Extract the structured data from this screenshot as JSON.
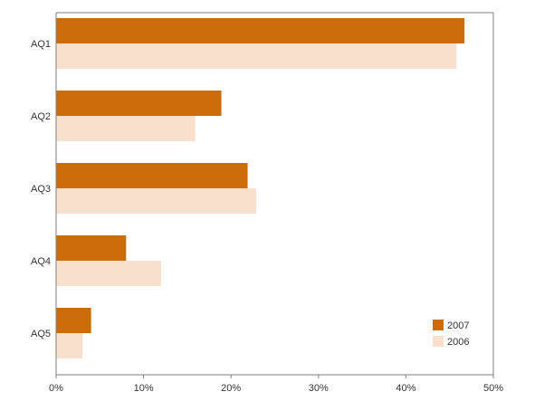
{
  "chart_data": {
    "type": "bar",
    "orientation": "horizontal",
    "categories": [
      "AQ1",
      "AQ2",
      "AQ3",
      "AQ4",
      "AQ5"
    ],
    "series": [
      {
        "name": "2007",
        "values": [
          46.7,
          18.9,
          21.9,
          8.0,
          4.0
        ]
      },
      {
        "name": "2006",
        "values": [
          45.8,
          15.9,
          22.9,
          12.0,
          3.0
        ]
      }
    ],
    "xlim": [
      0,
      50
    ],
    "x_ticks": [
      0,
      10,
      20,
      30,
      40,
      50
    ],
    "x_tick_labels": [
      "0%",
      "10%",
      "20%",
      "30%",
      "40%",
      "50%"
    ],
    "title": "",
    "xlabel": "",
    "ylabel": "",
    "grid": false,
    "legend_position": "bottom-right",
    "colors": {
      "2007": "#cc6b0a",
      "2006": "#f8e0cc",
      "axis": "#7f7f7f",
      "text": "#333333"
    }
  }
}
